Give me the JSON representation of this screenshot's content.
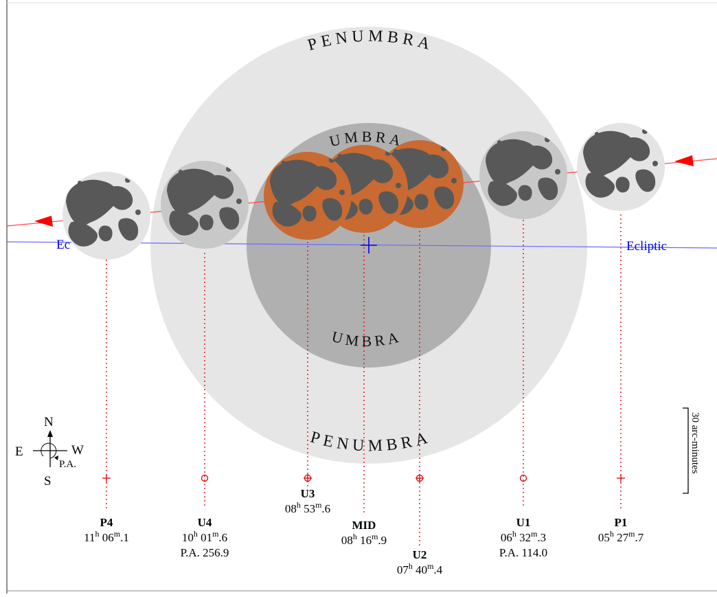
{
  "labels": {
    "penumbra_top": "PENUMBRA",
    "penumbra_bottom": "PENUMBRA",
    "umbra_top": "UMBRA",
    "umbra_bottom": "UMBRA",
    "ecliptic_left": "Ec",
    "ecliptic_right": "Ecliptic"
  },
  "compass": {
    "north": "N",
    "south": "S",
    "east": "E",
    "west": "W",
    "pa": "P.A."
  },
  "scale_bar": {
    "label": "30 arc-minutes"
  },
  "contacts": [
    {
      "id": "P4",
      "title": "P4",
      "h": "11",
      "m": "06",
      "frac": "1",
      "pa": "",
      "marker": "cross"
    },
    {
      "id": "U4",
      "title": "U4",
      "h": "10",
      "m": "01",
      "frac": "6",
      "pa": "P.A. 256.9",
      "marker": "circle"
    },
    {
      "id": "U3",
      "title": "U3",
      "h": "08",
      "m": "53",
      "frac": "6",
      "pa": "",
      "marker": "cross-circle"
    },
    {
      "id": "MID",
      "title": "MID",
      "h": "08",
      "m": "16",
      "frac": "9",
      "pa": "",
      "marker": "none"
    },
    {
      "id": "U2",
      "title": "U2",
      "h": "07",
      "m": "40",
      "frac": "4",
      "pa": "",
      "marker": "cross-circle"
    },
    {
      "id": "U1",
      "title": "U1",
      "h": "06",
      "m": "32",
      "frac": "3",
      "pa": "P.A. 114.0",
      "marker": "circle"
    },
    {
      "id": "P1",
      "title": "P1",
      "h": "05",
      "m": "27",
      "frac": "7",
      "pa": "",
      "marker": "cross"
    }
  ],
  "colors": {
    "penumbra": "#e6e6e6",
    "umbra": "#b0b0b0",
    "moon_penumbral": "#e4e4e4",
    "moon_umbral_light": "#c8c8c8",
    "moon_total": "#c86a32",
    "maria": "#585858",
    "path": "#ff0000",
    "ecliptic": "#0000ff",
    "guides": "#e00000"
  }
}
